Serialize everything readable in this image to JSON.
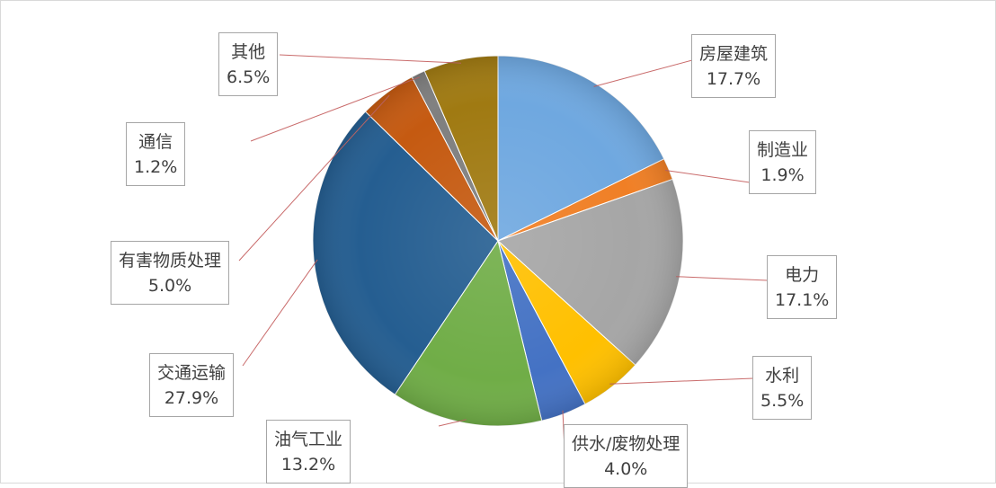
{
  "chart_data": {
    "type": "pie",
    "start_angle_deg": 0,
    "direction": "clockwise",
    "slices": [
      {
        "label": "房屋建筑",
        "value": 17.7,
        "value_text": "17.7%",
        "color": "#6fa8e0"
      },
      {
        "label": "制造业",
        "value": 1.9,
        "value_text": "1.9%",
        "color": "#f07f25"
      },
      {
        "label": "电力",
        "value": 17.1,
        "value_text": "17.1%",
        "color": "#a6a6a6"
      },
      {
        "label": "水利",
        "value": 5.5,
        "value_text": "5.5%",
        "color": "#ffc000"
      },
      {
        "label": "供水/废物处理",
        "value": 4.0,
        "value_text": "4.0%",
        "color": "#4472c4"
      },
      {
        "label": "油气工业",
        "value": 13.2,
        "value_text": "13.2%",
        "color": "#70ad47"
      },
      {
        "label": "交通运输",
        "value": 27.9,
        "value_text": "27.9%",
        "color": "#255e91"
      },
      {
        "label": "有害物质处理",
        "value": 5.0,
        "value_text": "5.0%",
        "color": "#c55a11"
      },
      {
        "label": "通信",
        "value": 1.2,
        "value_text": "1.2%",
        "color": "#7f7f7f"
      },
      {
        "label": "其他",
        "value": 6.5,
        "value_text": "6.5%",
        "color": "#a07a12"
      }
    ]
  }
}
